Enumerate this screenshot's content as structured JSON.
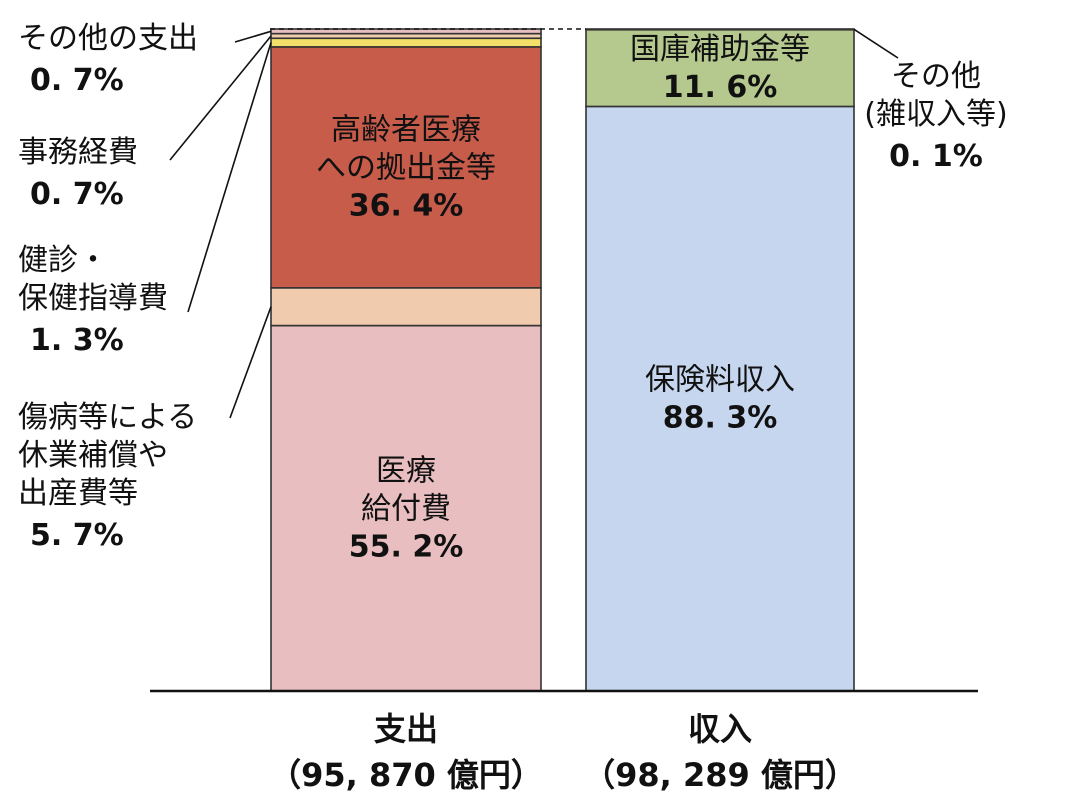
{
  "chart_data": {
    "type": "bar",
    "stacked": true,
    "unit": "%",
    "categories": [
      {
        "name": "支出",
        "total_label": "（95, 870 億円）"
      },
      {
        "name": "収入",
        "total_label": "（98, 289 億円）"
      }
    ],
    "ylim": [
      0,
      100
    ],
    "legend": "none",
    "grid": false,
    "columns": [
      {
        "category": "支出",
        "segments": [
          {
            "name_lines": [
              "医療",
              "給付費"
            ],
            "value": 55.2,
            "value_label": "55. 2%",
            "color": "#e9bec0",
            "label_position": "inside"
          },
          {
            "name_lines": [
              "傷病等による",
              "休業補償や",
              "出産費等"
            ],
            "value": 5.7,
            "value_label": "5. 7%",
            "color": "#f0cbad",
            "label_position": "outside-left"
          },
          {
            "name_lines": [
              "高齢者医療",
              "への拠出金等"
            ],
            "value": 36.4,
            "value_label": "36. 4%",
            "color": "#c85c4b",
            "label_position": "inside"
          },
          {
            "name_lines": [
              "健診・",
              "保健指導費"
            ],
            "value": 1.3,
            "value_label": "1. 3%",
            "color": "#f2e06a",
            "label_position": "outside-left"
          },
          {
            "name_lines": [
              "事務経費"
            ],
            "value": 0.7,
            "value_label": "0. 7%",
            "color": "#f0cbad",
            "label_position": "outside-left"
          },
          {
            "name_lines": [
              "その他の支出"
            ],
            "value": 0.7,
            "value_label": "0. 7%",
            "color": "#e9bec0",
            "label_position": "outside-left"
          }
        ]
      },
      {
        "category": "収入",
        "segments": [
          {
            "name_lines": [
              "保険料収入"
            ],
            "value": 88.3,
            "value_label": "88. 3%",
            "color": "#c6d6ef",
            "label_position": "inside"
          },
          {
            "name_lines": [
              "国庫補助金等"
            ],
            "value": 11.6,
            "value_label": "11. 6%",
            "color": "#b5c98e",
            "label_position": "inside"
          },
          {
            "name_lines": [
              "その他",
              "(雑収入等)"
            ],
            "value": 0.1,
            "value_label": "0. 1%",
            "color": "#c6d6ef",
            "label_position": "outside-right"
          }
        ]
      }
    ]
  }
}
